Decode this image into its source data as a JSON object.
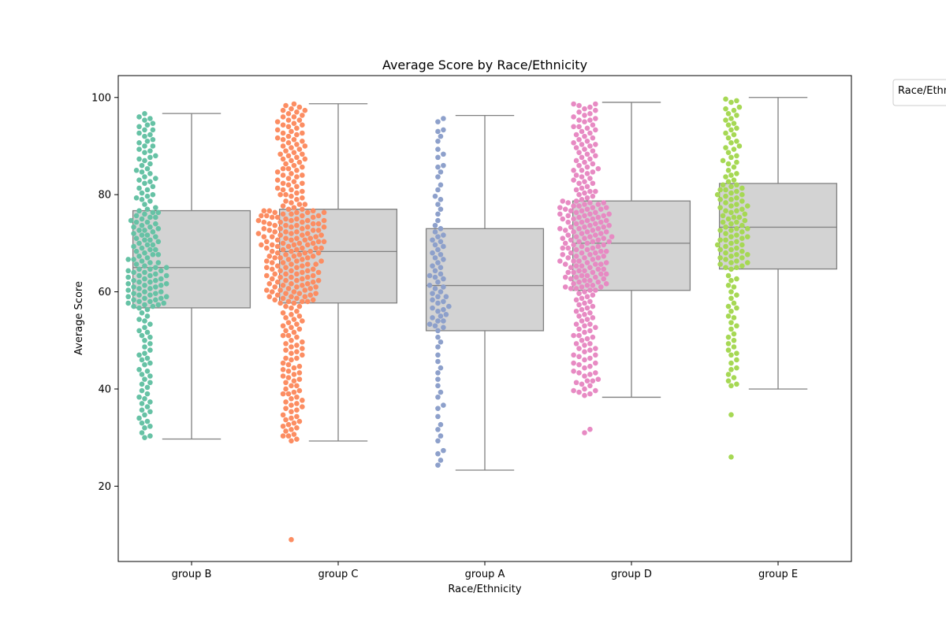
{
  "chart_data": {
    "type": "box",
    "title": "Average Score by Race/Ethnicity",
    "xlabel": "Race/Ethnicity",
    "ylabel": "Average Score",
    "ylim": [
      4.5,
      104.5
    ],
    "yticks": [
      20,
      40,
      60,
      80,
      100
    ],
    "categories": [
      "group B",
      "group C",
      "group A",
      "group D",
      "group E"
    ],
    "legend": {
      "title": "Race/Ethnicity",
      "placement": "outside-top-right"
    },
    "box_color": "#d3d3d3",
    "box_edge_color": "#808080",
    "boxes": [
      {
        "category": "group B",
        "whisker_low": 29.7,
        "q1": 56.7,
        "median": 65.0,
        "q3": 76.7,
        "whisker_high": 96.7,
        "swarm_color": "#66c2a5"
      },
      {
        "category": "group C",
        "whisker_low": 29.3,
        "q1": 57.7,
        "median": 68.3,
        "q3": 77.0,
        "whisker_high": 98.7,
        "swarm_color": "#fc8d62"
      },
      {
        "category": "group A",
        "whisker_low": 23.3,
        "q1": 52.0,
        "median": 61.3,
        "q3": 73.0,
        "whisker_high": 96.3,
        "swarm_color": "#8da0cb"
      },
      {
        "category": "group D",
        "whisker_low": 38.3,
        "q1": 60.3,
        "median": 70.0,
        "q3": 78.7,
        "whisker_high": 99.0,
        "swarm_color": "#e78ac3"
      },
      {
        "category": "group E",
        "whisker_low": 40.0,
        "q1": 64.7,
        "median": 73.3,
        "q3": 82.3,
        "whisker_high": 100.0,
        "swarm_color": "#a6d854"
      }
    ],
    "outliers": [
      {
        "category": "group C",
        "values": [
          9.0
        ]
      },
      {
        "category": "group D",
        "values": [
          31.0,
          31.7
        ]
      },
      {
        "category": "group E",
        "values": [
          26.0,
          34.7
        ]
      }
    ],
    "swarm_counts": [
      190,
      319,
      89,
      262,
      140
    ]
  }
}
